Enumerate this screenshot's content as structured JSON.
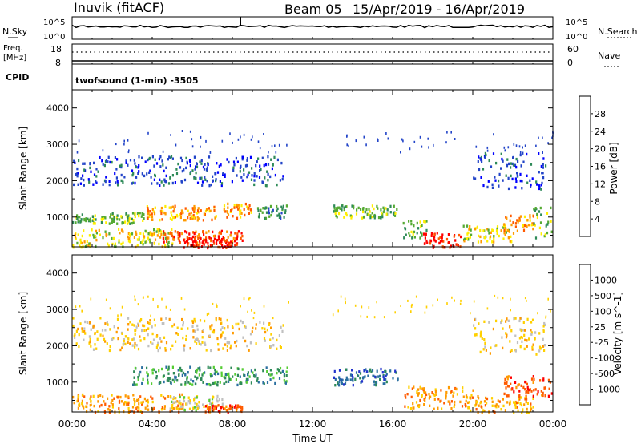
{
  "header": {
    "station": "Inuvik (fitACF)",
    "beam": "Beam 05",
    "date_range": "15/Apr/2019 - 16/Apr/2019"
  },
  "top_panels": {
    "nsky_label": "N.Sky",
    "nsky_ticks": [
      "10^5",
      "10^0"
    ],
    "nsearch_label": "N.Search",
    "nsearch_ticks": [
      "10^5",
      "10^0"
    ],
    "freq_label": "Freq.",
    "freq_unit": "[MHz]",
    "freq_ticks": [
      "18",
      "8"
    ],
    "nave_label": "Nave",
    "nave_ticks": [
      "60",
      "0"
    ],
    "cpid_label": "CPID",
    "cpid_text": "twofsound (1-min) -3505"
  },
  "colors": {
    "power": [
      "#0000ff",
      "#2244c8",
      "#2e8a58",
      "#55aa33",
      "#ffee00",
      "#ff9a00",
      "#ff5a00",
      "#ff0000"
    ],
    "velocity": [
      "#2233cc",
      "#2a6fa0",
      "#2e8a58",
      "#55cc33",
      "#c0c0c0",
      "#ffd000",
      "#ff9a00",
      "#ff5a00",
      "#ff0000"
    ]
  },
  "chart_data": [
    {
      "type": "heatmap",
      "name": "power",
      "xlabel": "",
      "ylabel": "Slant Range [km]",
      "xlim": [
        "00:00",
        "00:00"
      ],
      "ylim": [
        180,
        4500
      ],
      "y_ticks": [
        "1000",
        "2000",
        "3000",
        "4000"
      ],
      "colorbar_label": "Power [dB]",
      "colorbar_ticks": [
        "4",
        "8",
        "12",
        "16",
        "20",
        "24",
        "28"
      ],
      "colorbar_range": [
        0,
        32
      ],
      "bands": [
        {
          "t": [
            0.0,
            5.0
          ],
          "r": [
            200,
            700
          ],
          "level": 4
        },
        {
          "t": [
            0.0,
            3.6
          ],
          "r": [
            850,
            1150
          ],
          "level": 3
        },
        {
          "t": [
            3.6,
            7.2
          ],
          "r": [
            950,
            1350
          ],
          "level": 5
        },
        {
          "t": [
            4.5,
            8.5
          ],
          "r": [
            300,
            650
          ],
          "level": 6
        },
        {
          "t": [
            5.5,
            8.3
          ],
          "r": [
            180,
            450
          ],
          "level": 7
        },
        {
          "t": [
            7.5,
            9.0
          ],
          "r": [
            1000,
            1400
          ],
          "level": 5
        },
        {
          "t": [
            9.2,
            10.7
          ],
          "r": [
            1000,
            1350
          ],
          "level": 2
        },
        {
          "t": [
            0.0,
            10.5
          ],
          "r": [
            1900,
            2700
          ],
          "level": 1
        },
        {
          "t": [
            13.0,
            16.2
          ],
          "r": [
            1000,
            1350
          ],
          "level": 3
        },
        {
          "t": [
            16.5,
            17.7
          ],
          "r": [
            400,
            950
          ],
          "level": 3
        },
        {
          "t": [
            17.5,
            19.5
          ],
          "r": [
            180,
            600
          ],
          "level": 7
        },
        {
          "t": [
            19.5,
            22.0
          ],
          "r": [
            350,
            800
          ],
          "level": 4
        },
        {
          "t": [
            21.5,
            23.0
          ],
          "r": [
            650,
            1100
          ],
          "level": 5
        },
        {
          "t": [
            23.0,
            24.0
          ],
          "r": [
            400,
            1300
          ],
          "level": 3
        },
        {
          "t": [
            20.0,
            23.6
          ],
          "r": [
            1800,
            2800
          ],
          "level": 1
        }
      ]
    },
    {
      "type": "heatmap",
      "name": "velocity",
      "xlabel": "Time UT",
      "ylabel": "Slant Range [km]",
      "x_ticks": [
        "00:00",
        "04:00",
        "08:00",
        "12:00",
        "16:00",
        "20:00",
        "00:00"
      ],
      "ylim": [
        180,
        4500
      ],
      "y_ticks": [
        "1000",
        "2000",
        "3000",
        "4000"
      ],
      "colorbar_label": "Velocity [m s^-1]",
      "colorbar_ticks": [
        "1000",
        "500",
        "100",
        "25",
        "-25",
        "-100",
        "-500",
        "-1000"
      ],
      "bands": [
        {
          "t": [
            0.0,
            5.5
          ],
          "r": [
            200,
            700
          ],
          "level": 6
        },
        {
          "t": [
            3.0,
            10.7
          ],
          "r": [
            950,
            1450
          ],
          "level": 2
        },
        {
          "t": [
            4.8,
            7.5
          ],
          "r": [
            250,
            650
          ],
          "level": 4
        },
        {
          "t": [
            6.5,
            8.5
          ],
          "r": [
            180,
            400
          ],
          "level": 7
        },
        {
          "t": [
            0.0,
            10.5
          ],
          "r": [
            1900,
            2800
          ],
          "level": 5
        },
        {
          "t": [
            13.0,
            16.3
          ],
          "r": [
            950,
            1400
          ],
          "level": 1
        },
        {
          "t": [
            16.5,
            20.0
          ],
          "r": [
            300,
            900
          ],
          "level": 6
        },
        {
          "t": [
            19.5,
            23.0
          ],
          "r": [
            180,
            650
          ],
          "level": 6
        },
        {
          "t": [
            21.5,
            24.0
          ],
          "r": [
            650,
            1200
          ],
          "level": 7
        },
        {
          "t": [
            20.0,
            23.6
          ],
          "r": [
            1800,
            2800
          ],
          "level": 5
        }
      ]
    }
  ]
}
